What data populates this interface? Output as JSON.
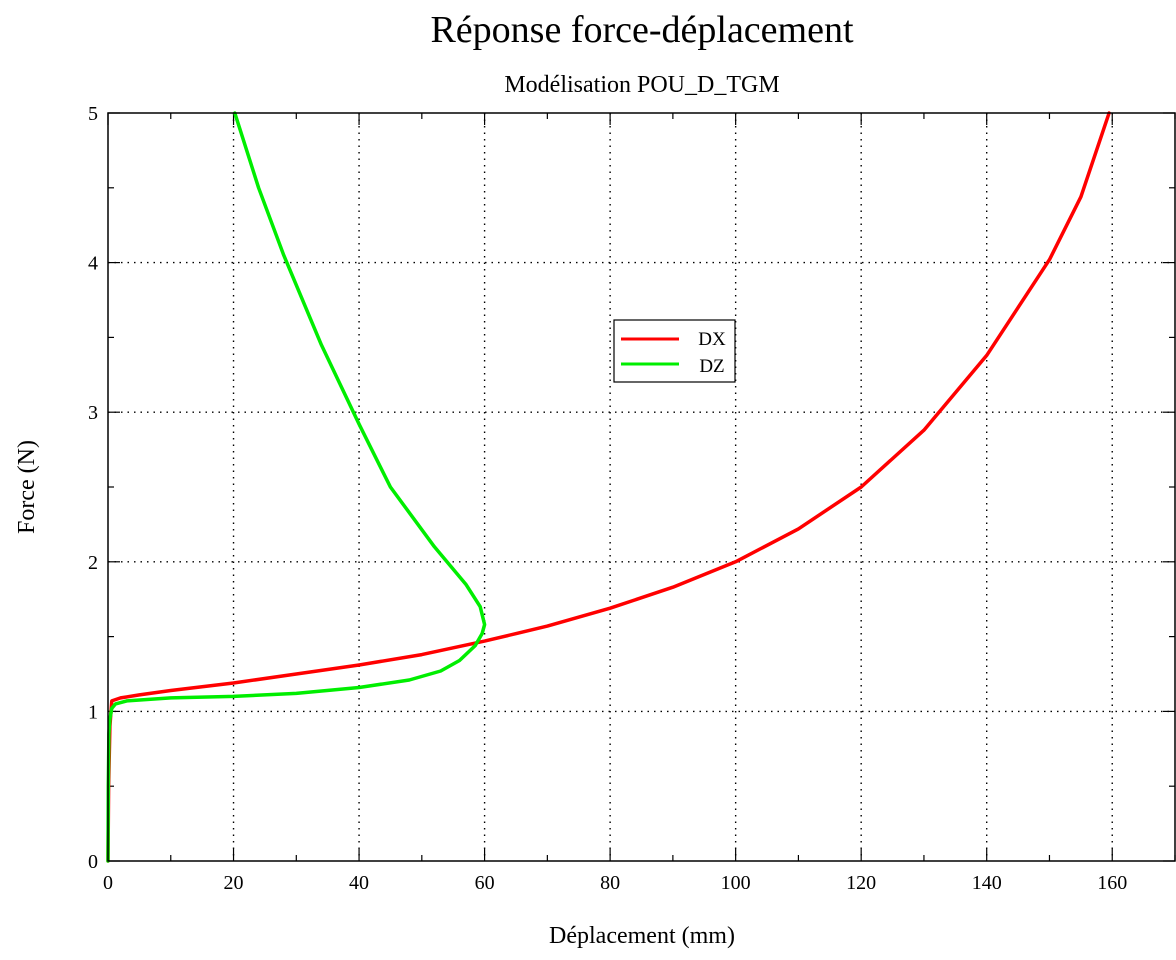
{
  "chart_data": {
    "type": "line",
    "title": "Réponse force-déplacement",
    "subtitle": "Modélisation POU_D_TGM",
    "xlabel": "Déplacement (mm)",
    "ylabel": "Force (N)",
    "xlim": [
      0,
      170
    ],
    "ylim": [
      0,
      5
    ],
    "xticks": [
      0,
      20,
      40,
      60,
      80,
      100,
      120,
      140,
      160
    ],
    "yticks": [
      0,
      1,
      2,
      3,
      4,
      5
    ],
    "xtick_labels": [
      "0",
      "20",
      "40",
      "60",
      "80",
      "100",
      "120",
      "140",
      "160"
    ],
    "ytick_labels": [
      "0",
      "1",
      "2",
      "3",
      "4",
      "5"
    ],
    "grid": true,
    "legend_position": "center-right",
    "series": [
      {
        "name": "DX",
        "color": "#ff0000",
        "x": [
          0,
          0.1,
          0.3,
          0.6,
          2,
          5,
          10,
          20,
          30,
          40,
          50,
          60,
          70,
          80,
          90,
          100,
          110,
          120,
          130,
          140,
          150,
          155,
          159.5
        ],
        "y": [
          0,
          0.5,
          0.9,
          1.07,
          1.09,
          1.11,
          1.14,
          1.19,
          1.25,
          1.31,
          1.38,
          1.47,
          1.57,
          1.69,
          1.83,
          2.0,
          2.22,
          2.5,
          2.88,
          3.38,
          4.02,
          4.44,
          5.0
        ]
      },
      {
        "name": "DZ",
        "color": "#00ee00",
        "x": [
          0,
          0.05,
          0.15,
          0.3,
          0.6,
          1.2,
          3,
          10,
          20,
          30,
          40,
          48,
          53,
          56,
          58.5,
          59.6,
          60,
          59.3,
          57,
          52,
          45,
          40,
          34,
          28,
          24,
          20.2
        ],
        "y": [
          0,
          0.5,
          0.85,
          0.95,
          1.02,
          1.05,
          1.07,
          1.09,
          1.1,
          1.12,
          1.16,
          1.21,
          1.27,
          1.34,
          1.44,
          1.52,
          1.58,
          1.7,
          1.85,
          2.1,
          2.5,
          2.92,
          3.45,
          4.05,
          4.5,
          5.0
        ]
      }
    ]
  }
}
